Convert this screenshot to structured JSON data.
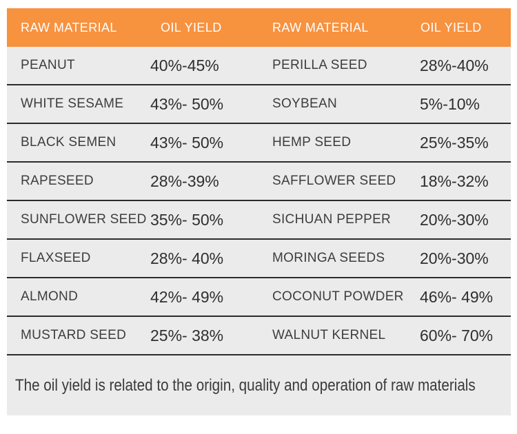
{
  "chart_data": {
    "type": "table",
    "columns": [
      "RAW MATERIAL",
      "OIL YIELD",
      "RAW MATERIAL",
      "OIL YIELD"
    ],
    "rows": [
      [
        "PEANUT",
        "40%-45%",
        "PERILLA SEED",
        "28%-40%"
      ],
      [
        "WHITE SESAME",
        "43%- 50%",
        "SOYBEAN",
        "5%-10%"
      ],
      [
        "BLACK SEMEN",
        "43%- 50%",
        "HEMP SEED",
        "25%-35%"
      ],
      [
        "RAPESEED",
        "28%-39%",
        "SAFFLOWER SEED",
        "18%-32%"
      ],
      [
        "SUNFLOWER SEED",
        "35%- 50%",
        "SICHUAN PEPPER",
        "20%-30%"
      ],
      [
        "FLAXSEED",
        "28%- 40%",
        "MORINGA SEEDS",
        "20%-30%"
      ],
      [
        "ALMOND",
        "42%- 49%",
        "COCONUT POWDER",
        "46%- 49%"
      ],
      [
        "MUSTARD SEED",
        "25%- 38%",
        "WALNUT KERNEL",
        "60%- 70%"
      ]
    ],
    "title": "",
    "legend": "none",
    "grid": "horizontal-dividers"
  },
  "footer": {
    "note": "The oil yield is related to the origin, quality and operation of raw materials"
  },
  "colors": {
    "header_bg": "#f7923f",
    "header_text": "#ffffff",
    "row_bg": "#ebebeb",
    "divider": "#2b2b2b",
    "label_text": "#3d3d3d",
    "value_text": "#2f2f2f",
    "page_bg": "#ffffff"
  }
}
